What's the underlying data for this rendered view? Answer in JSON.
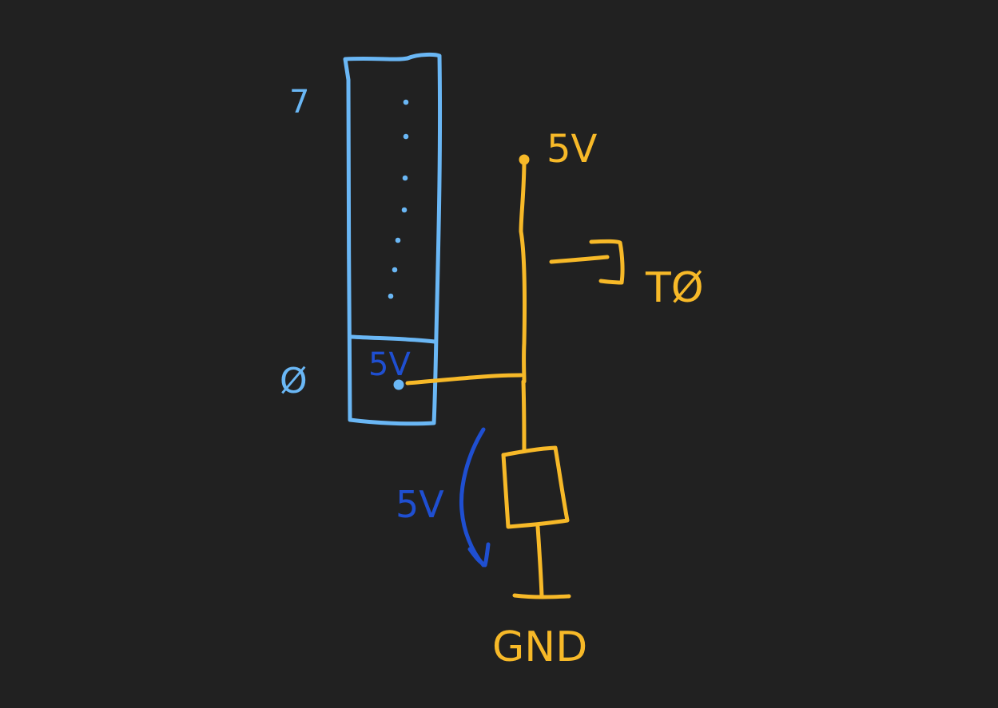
{
  "colors": {
    "background": "#212121",
    "register": "#6ab7f5",
    "circuit": "#f7b928",
    "annotation": "#1f4fd1"
  },
  "labels": {
    "bit_top": "7",
    "bit_bottom": "Ø",
    "cell_voltage": "5V",
    "supply_voltage": "5V",
    "output_label": "TØ",
    "drop_voltage": "5V",
    "ground": "GND"
  }
}
